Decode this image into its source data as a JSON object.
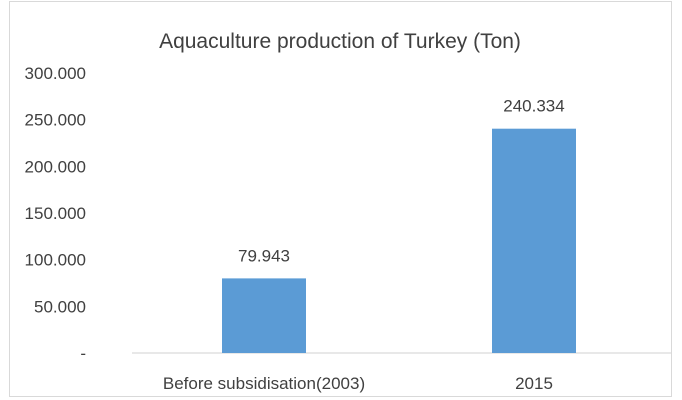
{
  "chart_data": {
    "type": "bar",
    "title": "Aquaculture production of Turkey (Ton)",
    "xlabel": "",
    "ylabel": "",
    "categories": [
      "Before subsidisation(2003)",
      "2015"
    ],
    "values": [
      79943,
      240334
    ],
    "data_labels": [
      "79.943",
      "240.334"
    ],
    "ylim": [
      0,
      300000
    ],
    "yticks": [
      0,
      50000,
      100000,
      150000,
      200000,
      250000,
      300000
    ],
    "ytick_labels": [
      "-",
      "50.000",
      "100.000",
      "150.000",
      "200.000",
      "250.000",
      "300.000"
    ],
    "grid": false,
    "legend": "none",
    "bar_color": "#5b9bd5"
  }
}
